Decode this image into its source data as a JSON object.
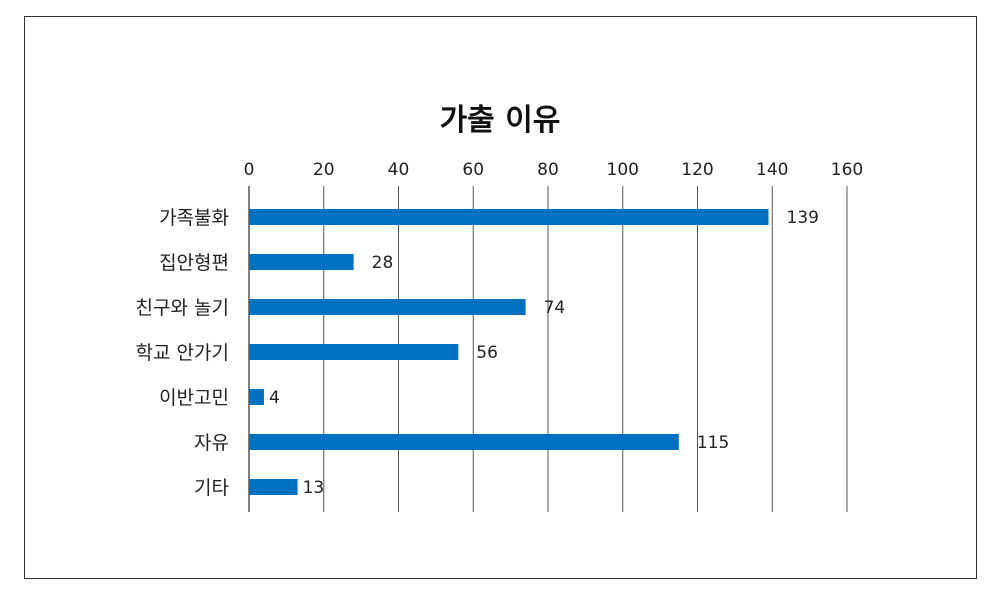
{
  "chart_data": {
    "type": "bar",
    "orientation": "horizontal",
    "title": "가출 이유",
    "categories": [
      "가족불화",
      "집안형편",
      "친구와 놀기",
      "학교 안가기",
      "이반고민",
      "자유",
      "기타"
    ],
    "values": [
      139,
      28,
      74,
      56,
      4,
      115,
      13
    ],
    "xlim": [
      0,
      160
    ],
    "ticks": [
      "0",
      "20",
      "40",
      "60",
      "80",
      "100",
      "120",
      "140",
      "160"
    ],
    "axis_position": "top",
    "grid": true,
    "legend": "none",
    "colors": {
      "bar": "#0070c0",
      "grid": "#555555",
      "border": "#333333"
    }
  }
}
